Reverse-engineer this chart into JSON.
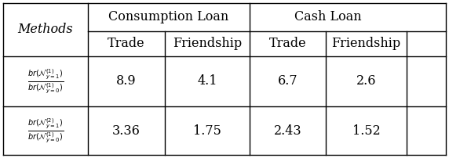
{
  "col_headers_top": [
    "Consumption Loan",
    "Cash Loan"
  ],
  "col_headers_sub": [
    "Trade",
    "Friendship",
    "Trade",
    "Friendship"
  ],
  "methods_label": "Methods",
  "row1_values": [
    "8.9",
    "4.1",
    "6.7",
    "2.6"
  ],
  "row2_values": [
    "3.36",
    "1.75",
    "2.43",
    "1.52"
  ],
  "row1_label_top": "(1)",
  "row2_label_top": "(2)",
  "bg_color": "white",
  "line_color": "black",
  "font_size": 11.5,
  "header_font_size": 11.5,
  "label_font_size": 9.0
}
